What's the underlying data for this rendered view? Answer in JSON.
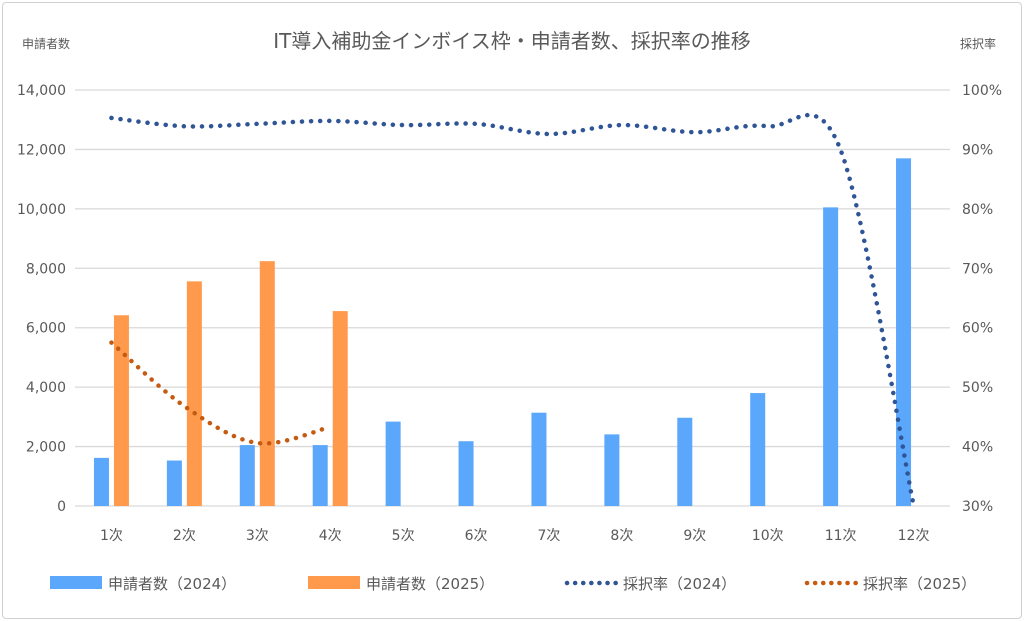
{
  "chart_data": {
    "type": "bar+line",
    "title": "IT導入補助金インボイス枠・申請者数、採択率の推移",
    "ylabel_left": "申請者数",
    "ylabel_right": "採択率",
    "categories": [
      "1次",
      "2次",
      "3次",
      "4次",
      "5次",
      "6次",
      "7次",
      "8次",
      "9次",
      "10次",
      "11次",
      "12次"
    ],
    "ylim_left": [
      0,
      14000
    ],
    "yticks_left": [
      "0",
      "2,000",
      "4,000",
      "6,000",
      "8,000",
      "10,000",
      "12,000",
      "14,000"
    ],
    "ylim_right": [
      30,
      100
    ],
    "yticks_right": [
      "30%",
      "40%",
      "50%",
      "60%",
      "70%",
      "80%",
      "90%",
      "100%"
    ],
    "grid": true,
    "legend_position": "bottom",
    "series": [
      {
        "name": "申請者数（2024）",
        "type": "bar",
        "axis": "left",
        "color": "#5BA7FB",
        "values": [
          1620,
          1530,
          2050,
          2050,
          2840,
          2180,
          3140,
          2410,
          2970,
          3800,
          10050,
          11700
        ]
      },
      {
        "name": "申請者数（2025）",
        "type": "bar",
        "axis": "left",
        "color": "#FF9A4D",
        "values": [
          6420,
          7560,
          8240,
          6560,
          null,
          null,
          null,
          null,
          null,
          null,
          null,
          null
        ]
      },
      {
        "name": "採択率（2024）",
        "type": "line",
        "axis": "right",
        "color": "#2F5597",
        "values": [
          95.3,
          93.9,
          94.3,
          94.8,
          94.1,
          94.3,
          92.6,
          94.1,
          92.9,
          93.9,
          89.9,
          30.2
        ]
      },
      {
        "name": "採択率（2025）",
        "type": "line",
        "axis": "right",
        "color": "#C55A11",
        "values": [
          57.5,
          46.8,
          40.6,
          43.3,
          null,
          null,
          null,
          null,
          null,
          null,
          null,
          null
        ]
      }
    ]
  }
}
